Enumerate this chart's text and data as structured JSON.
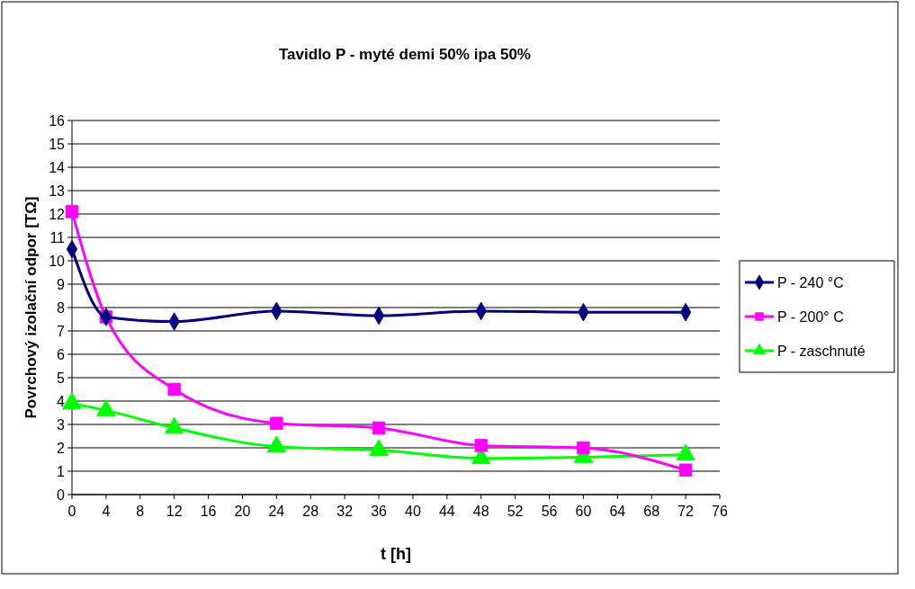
{
  "chart_data": {
    "type": "line",
    "title": "Tavidlo P - myté demi 50% ipa 50%",
    "xlabel": "t [h]",
    "ylabel": "Povrchový izolační odpor [TΩ]",
    "x": [
      0,
      4,
      12,
      24,
      36,
      48,
      60,
      72
    ],
    "series": [
      {
        "name": "P - 240 °C",
        "color": "#000080",
        "marker": "diamond",
        "values": [
          10.5,
          7.6,
          7.4,
          7.85,
          7.65,
          7.85,
          7.8,
          7.8
        ]
      },
      {
        "name": "P - 200° C",
        "color": "#ff00ff",
        "marker": "square",
        "values": [
          12.1,
          7.6,
          4.5,
          3.05,
          2.85,
          2.1,
          2.0,
          1.05
        ]
      },
      {
        "name": "P - zaschnuté",
        "color": "#00ff00",
        "marker": "triangle",
        "values": [
          3.9,
          3.6,
          2.85,
          2.05,
          1.9,
          1.55,
          1.6,
          1.7
        ]
      }
    ],
    "xlim": [
      0,
      76
    ],
    "xticks": [
      0,
      4,
      8,
      12,
      16,
      20,
      24,
      28,
      32,
      36,
      40,
      44,
      48,
      52,
      56,
      60,
      64,
      68,
      72,
      76
    ],
    "ylim": [
      0,
      16
    ],
    "yticks": [
      0,
      1,
      2,
      3,
      4,
      5,
      6,
      7,
      8,
      9,
      10,
      11,
      12,
      13,
      14,
      15,
      16
    ],
    "grid": "y",
    "legend": "right",
    "line_style": "solid"
  }
}
